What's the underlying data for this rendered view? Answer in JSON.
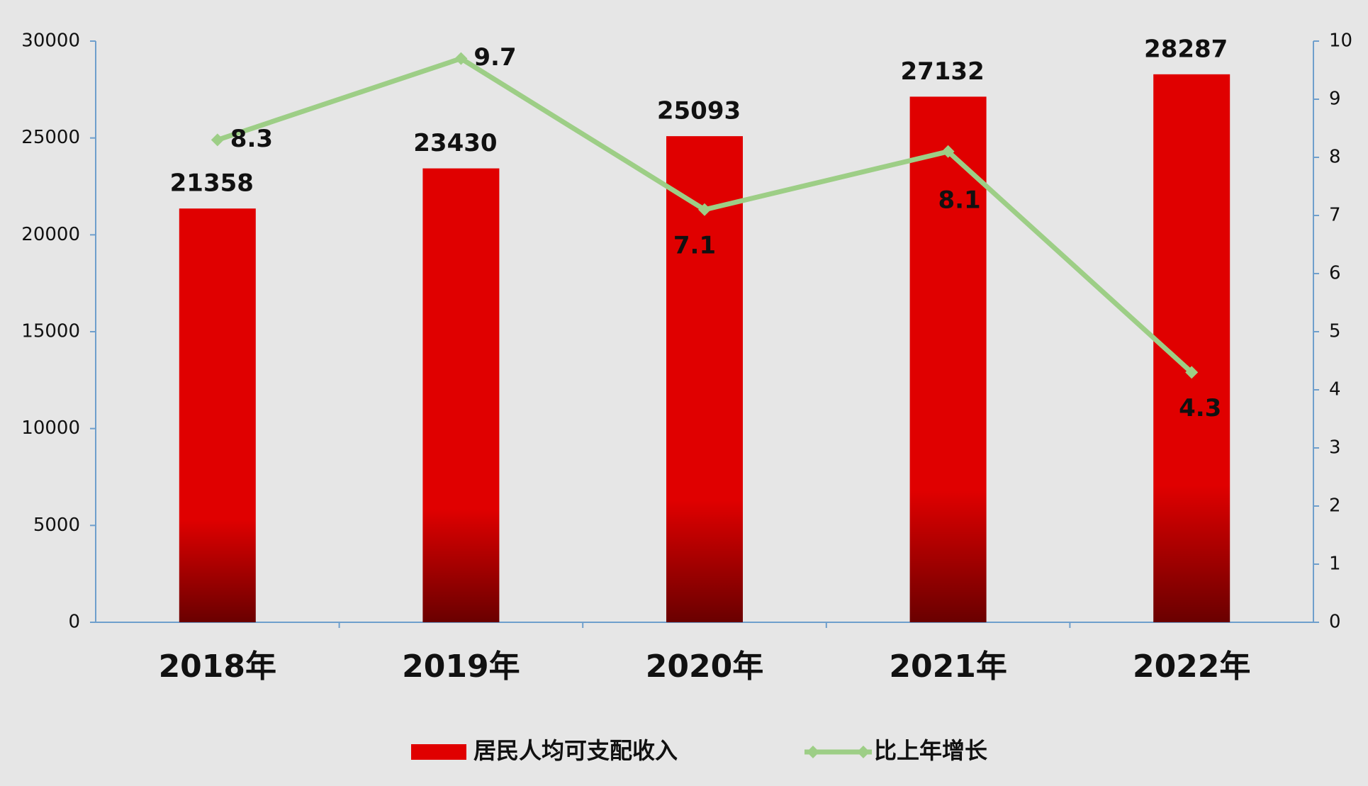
{
  "chart_data": {
    "type": "bar",
    "categories": [
      "2018年",
      "2019年",
      "2020年",
      "2021年",
      "2022年"
    ],
    "series": [
      {
        "name": "居民人均可支配收入",
        "color": "#e00000",
        "values": [
          21358,
          23430,
          25093,
          27132,
          28287
        ]
      },
      {
        "name": "比上年增长",
        "type": "line",
        "axis": "y2",
        "color": "#9dce86",
        "values": [
          8.3,
          9.7,
          7.1,
          8.1,
          4.3
        ]
      }
    ],
    "ylim": [
      0,
      30000
    ],
    "yticks": [
      0,
      5000,
      10000,
      15000,
      20000,
      25000,
      30000
    ],
    "y2lim": [
      0,
      10
    ],
    "y2ticks": [
      0,
      1,
      2,
      3,
      4,
      5,
      6,
      7,
      8,
      9,
      10
    ],
    "grid": false,
    "legend": "bottom"
  }
}
